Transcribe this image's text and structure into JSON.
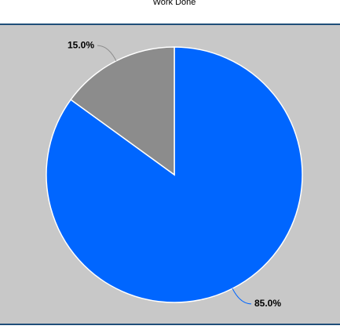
{
  "chart_data": {
    "type": "pie",
    "title": "Work Done",
    "values": [
      85,
      15
    ],
    "value_labels": [
      "85.0%",
      "15.0%"
    ],
    "colors": [
      "#0066ff",
      "#8c8c8c"
    ]
  }
}
